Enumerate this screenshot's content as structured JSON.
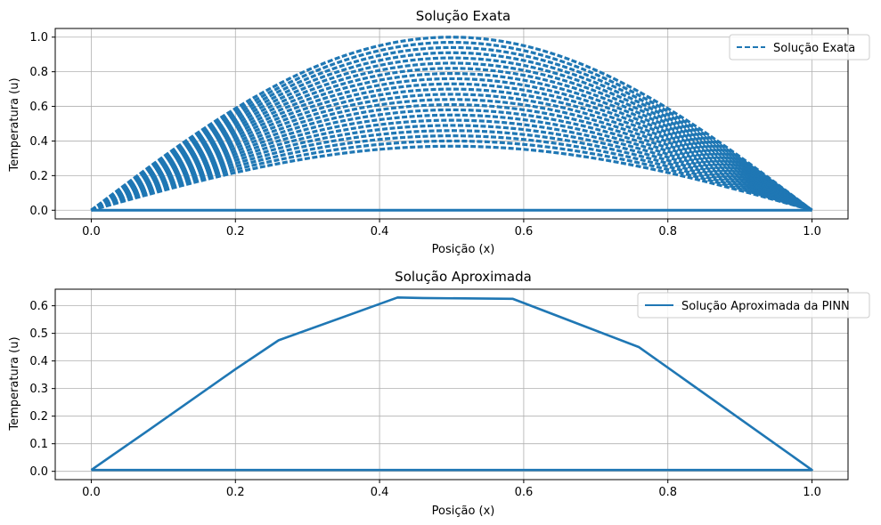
{
  "colors": {
    "series": "#1f77b4",
    "grid": "#b0b0b0",
    "axis": "#000000"
  },
  "chart_data": [
    {
      "type": "line",
      "title": "Solução Exata",
      "xlabel": "Posição (x)",
      "ylabel": "Temperatura (u)",
      "xlim": [
        -0.05,
        1.05
      ],
      "ylim": [
        -0.05,
        1.05
      ],
      "xticks": [
        0.0,
        0.2,
        0.4,
        0.6,
        0.8,
        1.0
      ],
      "xtick_labels": [
        "0.0",
        "0.2",
        "0.4",
        "0.6",
        "0.8",
        "1.0"
      ],
      "yticks": [
        0.0,
        0.2,
        0.4,
        0.6,
        0.8,
        1.0
      ],
      "ytick_labels": [
        "0.0",
        "0.2",
        "0.4",
        "0.6",
        "0.8",
        "1.0"
      ],
      "grid": true,
      "legend": {
        "position": "upper-right",
        "entries": [
          {
            "label": "Solução Exata",
            "style": "dashed"
          }
        ]
      },
      "series": [
        {
          "name": "Solução Exata",
          "function": "exp(-pi^2 t) * sin(pi x)",
          "x_range": [
            0,
            1
          ],
          "amplitudes": [
            1.0,
            0.97,
            0.94,
            0.91,
            0.88,
            0.85,
            0.82,
            0.79,
            0.76,
            0.73,
            0.7,
            0.67,
            0.64,
            0.61,
            0.58,
            0.55,
            0.52,
            0.49,
            0.46,
            0.43,
            0.4,
            0.37
          ],
          "baseline": 0.0
        }
      ]
    },
    {
      "type": "line",
      "title": "Solução Aproximada",
      "xlabel": "Posição (x)",
      "ylabel": "Temperatura (u)",
      "xlim": [
        -0.05,
        1.05
      ],
      "ylim": [
        -0.03,
        0.66
      ],
      "xticks": [
        0.0,
        0.2,
        0.4,
        0.6,
        0.8,
        1.0
      ],
      "xtick_labels": [
        "0.0",
        "0.2",
        "0.4",
        "0.6",
        "0.8",
        "1.0"
      ],
      "yticks": [
        0.0,
        0.1,
        0.2,
        0.3,
        0.4,
        0.5,
        0.6
      ],
      "ytick_labels": [
        "0.0",
        "0.1",
        "0.2",
        "0.3",
        "0.4",
        "0.5",
        "0.6"
      ],
      "grid": true,
      "legend": {
        "position": "upper-right",
        "entries": [
          {
            "label": "Solução Aproximada da PINN",
            "style": "solid"
          }
        ]
      },
      "series": [
        {
          "name": "Solução Aproximada da PINN",
          "x": [
            0.0,
            0.08,
            0.2,
            0.26,
            0.425,
            0.46,
            0.585,
            0.6,
            0.76,
            1.0,
            0.5,
            0.0
          ],
          "y": [
            0.005,
            0.15,
            0.37,
            0.475,
            0.63,
            0.628,
            0.625,
            0.61,
            0.45,
            0.005,
            0.005,
            0.005
          ]
        }
      ]
    }
  ]
}
